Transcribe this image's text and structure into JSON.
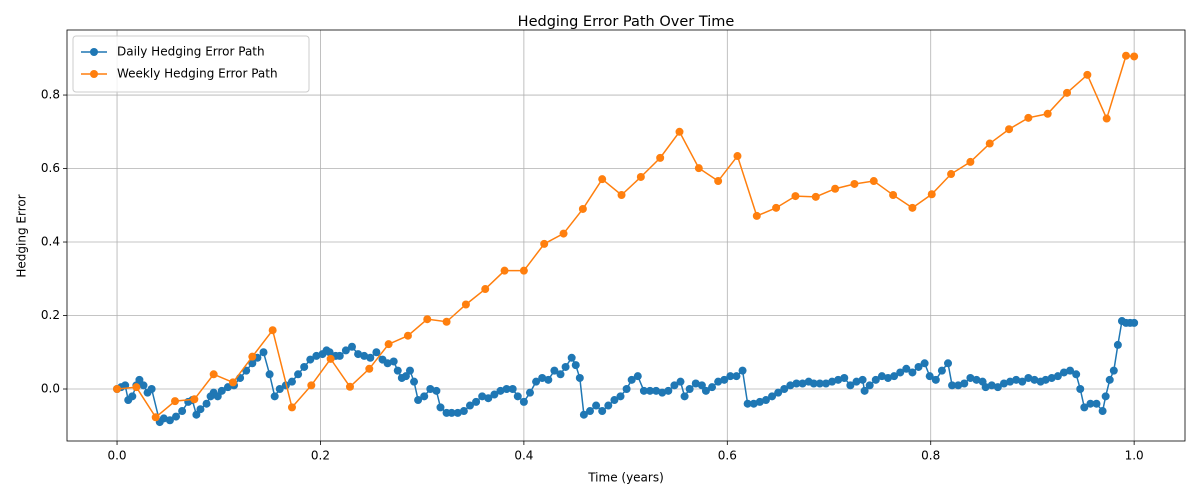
{
  "chart_data": {
    "type": "line",
    "title": "Hedging Error Path Over Time",
    "x_label": "Time (years)",
    "y_label": "Hedging Error",
    "xlim": [
      -0.0492,
      1.05
    ],
    "ylim": [
      -0.1415,
      0.977
    ],
    "xticks": [
      {
        "value": 0,
        "label": "0.0"
      },
      0.2,
      0.4,
      0.6,
      0.8,
      {
        "value": 1,
        "label": "1.0"
      }
    ],
    "yticks": [
      {
        "value": 0,
        "label": "0.0"
      },
      0.2,
      0.4,
      0.6,
      0.8
    ],
    "grid": true,
    "legend": "upper left",
    "series": [
      {
        "name": "Daily Hedging Error Path",
        "color": "#1f77b4",
        "x": [
          0,
          0.004,
          0.008,
          0.011,
          0.015,
          0.019,
          0.022,
          0.026,
          0.03,
          0.034,
          0.042,
          0.046,
          0.052,
          0.058,
          0.064,
          0.07,
          0.074,
          0.078,
          0.082,
          0.088,
          0.092,
          0.095,
          0.099,
          0.103,
          0.109,
          0.115,
          0.121,
          0.127,
          0.133,
          0.138,
          0.144,
          0.15,
          0.155,
          0.16,
          0.166,
          0.172,
          0.178,
          0.184,
          0.19,
          0.196,
          0.202,
          0.206,
          0.209,
          0.215,
          0.219,
          0.225,
          0.231,
          0.237,
          0.243,
          0.249,
          0.255,
          0.261,
          0.266,
          0.272,
          0.276,
          0.28,
          0.284,
          0.288,
          0.292,
          0.296,
          0.302,
          0.308,
          0.314,
          0.318,
          0.324,
          0.329,
          0.335,
          0.341,
          0.347,
          0.353,
          0.359,
          0.365,
          0.371,
          0.377,
          0.383,
          0.389,
          0.394,
          0.4,
          0.406,
          0.412,
          0.418,
          0.424,
          0.43,
          0.436,
          0.441,
          0.447,
          0.451,
          0.455,
          0.459,
          0.465,
          0.471,
          0.477,
          0.483,
          0.489,
          0.495,
          0.501,
          0.506,
          0.512,
          0.518,
          0.524,
          0.53,
          0.536,
          0.542,
          0.548,
          0.554,
          0.558,
          0.563,
          0.569,
          0.575,
          0.579,
          0.585,
          0.591,
          0.597,
          0.603,
          0.609,
          0.615,
          0.62,
          0.626,
          0.632,
          0.638,
          0.644,
          0.65,
          0.656,
          0.662,
          0.668,
          0.674,
          0.68,
          0.685,
          0.691,
          0.697,
          0.703,
          0.709,
          0.715,
          0.721,
          0.727,
          0.733,
          0.735,
          0.74,
          0.746,
          0.752,
          0.758,
          0.764,
          0.77,
          0.776,
          0.782,
          0.788,
          0.794,
          0.799,
          0.805,
          0.811,
          0.817,
          0.821,
          0.827,
          0.833,
          0.839,
          0.845,
          0.851,
          0.854,
          0.86,
          0.866,
          0.872,
          0.878,
          0.884,
          0.89,
          0.896,
          0.902,
          0.908,
          0.913,
          0.919,
          0.925,
          0.931,
          0.937,
          0.943,
          0.947,
          0.951,
          0.957,
          0.963,
          0.969,
          0.972,
          0.976,
          0.98,
          0.984,
          0.988,
          0.992,
          0.996,
          1.0
        ],
        "values": [
          0,
          0.005,
          0.01,
          -0.03,
          -0.02,
          0.01,
          0.025,
          0.01,
          -0.01,
          0.0,
          -0.09,
          -0.08,
          -0.085,
          -0.075,
          -0.06,
          -0.035,
          -0.03,
          -0.07,
          -0.055,
          -0.04,
          -0.02,
          -0.01,
          -0.02,
          -0.005,
          0.005,
          0.01,
          0.03,
          0.05,
          0.07,
          0.085,
          0.1,
          0.04,
          -0.02,
          0.0,
          0.01,
          0.02,
          0.04,
          0.06,
          0.08,
          0.09,
          0.095,
          0.105,
          0.1,
          0.09,
          0.09,
          0.105,
          0.115,
          0.095,
          0.09,
          0.085,
          0.1,
          0.08,
          0.07,
          0.075,
          0.05,
          0.03,
          0.035,
          0.05,
          0.02,
          -0.03,
          -0.02,
          0.0,
          -0.005,
          -0.05,
          -0.065,
          -0.065,
          -0.065,
          -0.06,
          -0.045,
          -0.035,
          -0.02,
          -0.025,
          -0.015,
          -0.005,
          0.0,
          0.0,
          -0.02,
          -0.035,
          -0.01,
          0.02,
          0.03,
          0.025,
          0.05,
          0.04,
          0.06,
          0.085,
          0.065,
          0.03,
          -0.07,
          -0.06,
          -0.045,
          -0.06,
          -0.045,
          -0.03,
          -0.02,
          0.0,
          0.025,
          0.035,
          -0.005,
          -0.005,
          -0.005,
          -0.01,
          -0.005,
          0.01,
          0.02,
          -0.02,
          0.0,
          0.015,
          0.01,
          -0.005,
          0.005,
          0.02,
          0.025,
          0.035,
          0.035,
          0.05,
          -0.04,
          -0.04,
          -0.035,
          -0.03,
          -0.02,
          -0.01,
          0.0,
          0.01,
          0.015,
          0.015,
          0.02,
          0.015,
          0.015,
          0.015,
          0.02,
          0.025,
          0.03,
          0.01,
          0.02,
          0.025,
          -0.005,
          0.01,
          0.025,
          0.035,
          0.03,
          0.035,
          0.045,
          0.055,
          0.045,
          0.06,
          0.07,
          0.035,
          0.025,
          0.05,
          0.07,
          0.01,
          0.01,
          0.015,
          0.03,
          0.025,
          0.02,
          0.005,
          0.01,
          0.005,
          0.015,
          0.02,
          0.025,
          0.02,
          0.03,
          0.025,
          0.02,
          0.025,
          0.03,
          0.035,
          0.045,
          0.05,
          0.04,
          0.0,
          -0.05,
          -0.04,
          -0.04,
          -0.06,
          -0.02,
          0.025,
          0.05,
          0.12,
          0.185,
          0.18,
          0.18,
          0.18
        ]
      },
      {
        "name": "Weekly Hedging Error Path",
        "color": "#ff7f0e",
        "x": [
          0,
          0.019,
          0.038,
          0.057,
          0.076,
          0.095,
          0.114,
          0.133,
          0.153,
          0.172,
          0.191,
          0.21,
          0.229,
          0.248,
          0.267,
          0.286,
          0.305,
          0.324,
          0.343,
          0.362,
          0.381,
          0.4,
          0.42,
          0.439,
          0.458,
          0.477,
          0.496,
          0.515,
          0.534,
          0.553,
          0.572,
          0.591,
          0.61,
          0.629,
          0.648,
          0.667,
          0.687,
          0.706,
          0.725,
          0.744,
          0.763,
          0.782,
          0.801,
          0.82,
          0.839,
          0.858,
          0.877,
          0.896,
          0.915,
          0.934,
          0.954,
          0.973,
          0.992,
          1.0
        ],
        "values": [
          0.0,
          0.005,
          -0.077,
          -0.033,
          -0.028,
          0.04,
          0.018,
          0.088,
          0.16,
          -0.05,
          0.01,
          0.082,
          0.006,
          0.055,
          0.122,
          0.145,
          0.19,
          0.183,
          0.23,
          0.272,
          0.322,
          0.322,
          0.395,
          0.423,
          0.49,
          0.571,
          0.528,
          0.577,
          0.629,
          0.7,
          0.601,
          0.566,
          0.634,
          0.471,
          0.493,
          0.525,
          0.523,
          0.545,
          0.558,
          0.566,
          0.528,
          0.493,
          0.53,
          0.585,
          0.618,
          0.668,
          0.707,
          0.738,
          0.749,
          0.806,
          0.855,
          0.736,
          0.907,
          0.905
        ]
      }
    ]
  }
}
